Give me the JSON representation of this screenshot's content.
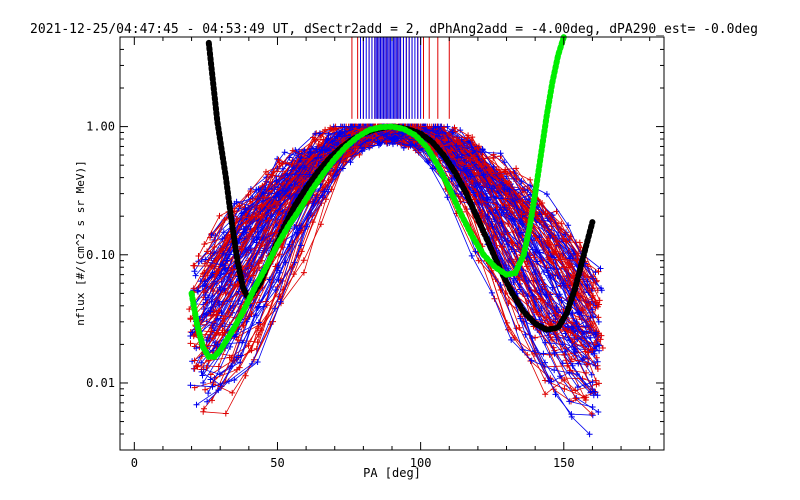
{
  "chart_data": {
    "type": "scatter",
    "title": "2021-12-25/04:47:45 - 04:53:49 UT, dSectr2add = 2, dPhAng2add = -4.00deg, dPA290_est=  -0.0deg",
    "xlabel": "PA [deg]",
    "ylabel": "nflux [#/(cm^2 s sr MeV)]",
    "xlim": [
      -5,
      185
    ],
    "ylim": [
      0.003,
      5.0
    ],
    "yscale": "log",
    "xticks": [
      0,
      50,
      100,
      150
    ],
    "xtick_labels": [
      "0",
      "50",
      "100",
      "150"
    ],
    "yticks": [
      0.01,
      0.1,
      1.0
    ],
    "ytick_labels": [
      "0.01",
      "0.10",
      "1.00"
    ],
    "grid": false,
    "legend": "none",
    "colors": {
      "red_series": "#dd0000",
      "blue_series": "#0000ee",
      "black_fit": "#000000",
      "green_fit": "#00ee00"
    },
    "series": [
      {
        "color": "black",
        "style": "thick-dotted",
        "x": [
          26,
          29,
          32,
          34,
          36,
          38,
          40,
          44,
          48,
          52,
          56,
          60,
          64,
          68,
          72,
          76,
          80,
          84,
          88,
          90,
          92,
          96,
          100,
          104,
          108,
          112,
          116,
          120,
          124,
          128,
          132,
          136,
          140,
          144,
          148,
          151,
          154,
          157,
          160
        ],
        "y": [
          4.5,
          1.1,
          0.4,
          0.18,
          0.09,
          0.055,
          0.045,
          0.06,
          0.1,
          0.16,
          0.24,
          0.33,
          0.44,
          0.56,
          0.68,
          0.79,
          0.88,
          0.95,
          0.99,
          1.0,
          0.99,
          0.95,
          0.88,
          0.76,
          0.6,
          0.44,
          0.3,
          0.19,
          0.12,
          0.075,
          0.05,
          0.036,
          0.029,
          0.026,
          0.027,
          0.035,
          0.055,
          0.1,
          0.18
        ]
      },
      {
        "color": "green",
        "style": "thick-dotted",
        "x": [
          20,
          22,
          24,
          26,
          28,
          30,
          34,
          38,
          42,
          46,
          50,
          54,
          58,
          62,
          66,
          70,
          74,
          78,
          82,
          86,
          90,
          94,
          98,
          102,
          106,
          110,
          114,
          118,
          122,
          126,
          130,
          133,
          136,
          138,
          140,
          142,
          144,
          146,
          148,
          150
        ],
        "y": [
          0.05,
          0.028,
          0.019,
          0.016,
          0.016,
          0.018,
          0.025,
          0.036,
          0.055,
          0.08,
          0.12,
          0.17,
          0.23,
          0.32,
          0.43,
          0.56,
          0.7,
          0.83,
          0.94,
          0.99,
          1.0,
          0.96,
          0.86,
          0.7,
          0.5,
          0.33,
          0.21,
          0.14,
          0.1,
          0.08,
          0.07,
          0.072,
          0.1,
          0.16,
          0.3,
          0.6,
          1.2,
          2.2,
          3.6,
          5.0
        ]
      }
    ],
    "red_vertical_lines_x": [
      76,
      78,
      80,
      82,
      83,
      84,
      85,
      86,
      87,
      88,
      89,
      90,
      91,
      92,
      93,
      94,
      95,
      96,
      97,
      99,
      101,
      103,
      106,
      110
    ],
    "blue_vertical_lines_x": [
      79,
      80,
      81,
      82,
      83,
      84,
      84.5,
      85,
      85.5,
      86,
      86.5,
      87,
      87.5,
      88,
      88.5,
      89,
      89.5,
      90,
      90.5,
      91,
      91.5,
      92,
      92.5,
      93,
      94,
      95,
      96,
      97,
      98,
      99,
      100
    ],
    "vertical_lines_y_range": [
      1.15,
      5.0
    ],
    "red_sample_point_cluster_hint": "many red and blue PA-distribution curves peaking near 1.00 at PA ~90 deg, spreading down to ~0.005 at PA 20 and 160"
  }
}
